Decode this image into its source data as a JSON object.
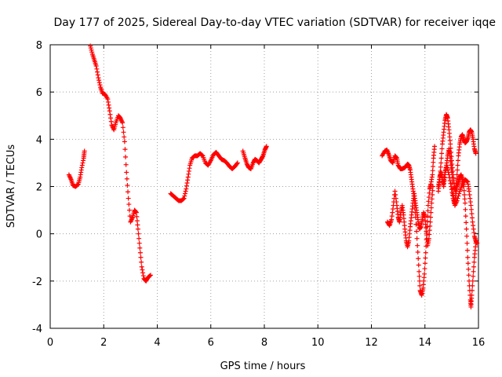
{
  "chart_data": {
    "type": "scatter",
    "title": "Day 177 of 2025, Sidereal Day-to-day VTEC variation (SDTVAR) for receiver iqqe",
    "xlabel": "GPS time / hours",
    "ylabel": "SDTVAR / TECUs",
    "xlim": [
      0,
      16
    ],
    "ylim": [
      -4,
      8
    ],
    "xticks": [
      "0",
      "2",
      "4",
      "6",
      "8",
      "10",
      "12",
      "14",
      "16"
    ],
    "yticks": [
      "-4",
      "-2",
      "0",
      "2",
      "4",
      "6",
      "8"
    ],
    "grid": true,
    "marker": "+",
    "colors": {
      "series": "#ff0000",
      "grid": "#a0a0a0",
      "axes": "#000000"
    },
    "series": [
      {
        "segments": [
          [
            [
              0.7,
              2.5
            ],
            [
              0.78,
              2.3
            ],
            [
              0.85,
              2.05
            ],
            [
              0.95,
              2.0
            ],
            [
              1.05,
              2.1
            ],
            [
              1.12,
              2.4
            ],
            [
              1.18,
              2.8
            ],
            [
              1.25,
              3.2
            ],
            [
              1.28,
              3.5
            ]
          ],
          [
            [
              1.5,
              7.95
            ],
            [
              1.58,
              7.6
            ],
            [
              1.65,
              7.35
            ],
            [
              1.72,
              7.1
            ],
            [
              1.8,
              6.6
            ],
            [
              1.88,
              6.2
            ],
            [
              1.95,
              5.95
            ],
            [
              2.05,
              5.9
            ],
            [
              2.15,
              5.7
            ],
            [
              2.22,
              5.2
            ],
            [
              2.3,
              4.6
            ],
            [
              2.38,
              4.4
            ],
            [
              2.45,
              4.7
            ],
            [
              2.55,
              5.0
            ],
            [
              2.62,
              4.9
            ],
            [
              2.7,
              4.7
            ],
            [
              2.78,
              3.9
            ],
            [
              2.85,
              2.6
            ],
            [
              2.92,
              1.5
            ],
            [
              3.0,
              0.5
            ],
            [
              3.08,
              0.7
            ],
            [
              3.15,
              1.0
            ],
            [
              3.22,
              0.9
            ],
            [
              3.28,
              0.2
            ],
            [
              3.35,
              -0.6
            ],
            [
              3.42,
              -1.4
            ],
            [
              3.5,
              -1.9
            ],
            [
              3.58,
              -2.0
            ],
            [
              3.65,
              -1.85
            ],
            [
              3.75,
              -1.75
            ]
          ],
          [
            [
              4.5,
              1.7
            ],
            [
              4.6,
              1.6
            ],
            [
              4.7,
              1.5
            ],
            [
              4.8,
              1.4
            ],
            [
              4.9,
              1.4
            ],
            [
              5.0,
              1.5
            ],
            [
              5.08,
              1.9
            ],
            [
              5.15,
              2.4
            ],
            [
              5.22,
              2.9
            ],
            [
              5.3,
              3.2
            ],
            [
              5.4,
              3.3
            ],
            [
              5.5,
              3.3
            ],
            [
              5.6,
              3.4
            ],
            [
              5.7,
              3.3
            ],
            [
              5.8,
              3.0
            ],
            [
              5.9,
              2.9
            ],
            [
              6.0,
              3.1
            ],
            [
              6.1,
              3.35
            ],
            [
              6.2,
              3.45
            ],
            [
              6.3,
              3.3
            ],
            [
              6.4,
              3.15
            ],
            [
              6.5,
              3.1
            ],
            [
              6.6,
              3.0
            ],
            [
              6.7,
              2.85
            ],
            [
              6.8,
              2.75
            ],
            [
              6.9,
              2.85
            ],
            [
              7.0,
              3.0
            ]
          ],
          [
            [
              7.2,
              3.5
            ],
            [
              7.28,
              3.2
            ],
            [
              7.35,
              2.95
            ],
            [
              7.42,
              2.8
            ],
            [
              7.5,
              2.75
            ],
            [
              7.58,
              3.0
            ],
            [
              7.65,
              3.15
            ],
            [
              7.72,
              3.1
            ],
            [
              7.8,
              3.0
            ],
            [
              7.88,
              3.15
            ],
            [
              7.95,
              3.3
            ],
            [
              8.02,
              3.55
            ],
            [
              8.08,
              3.7
            ]
          ],
          [
            [
              12.4,
              3.3
            ],
            [
              12.5,
              3.5
            ],
            [
              12.58,
              3.55
            ],
            [
              12.65,
              3.35
            ],
            [
              12.72,
              3.1
            ],
            [
              12.8,
              3.0
            ],
            [
              12.88,
              3.3
            ],
            [
              12.95,
              3.2
            ],
            [
              13.0,
              2.9
            ],
            [
              13.08,
              2.75
            ],
            [
              13.15,
              2.75
            ],
            [
              13.25,
              2.8
            ],
            [
              13.35,
              2.95
            ],
            [
              13.4,
              2.9
            ],
            [
              13.45,
              2.7
            ],
            [
              13.5,
              2.3
            ],
            [
              13.55,
              1.9
            ],
            [
              13.6,
              1.5
            ],
            [
              13.65,
              0.7
            ],
            [
              13.72,
              -0.5
            ],
            [
              13.78,
              -1.6
            ],
            [
              13.82,
              -2.4
            ],
            [
              13.88,
              -2.6
            ],
            [
              13.93,
              -2.3
            ],
            [
              13.98,
              -1.7
            ],
            [
              14.03,
              -0.8
            ],
            [
              14.08,
              0.3
            ],
            [
              14.12,
              1.2
            ],
            [
              14.18,
              1.9
            ],
            [
              14.22,
              2.1
            ],
            [
              14.28,
              2.5
            ],
            [
              14.32,
              3.2
            ],
            [
              14.36,
              3.7
            ]
          ],
          [
            [
              12.6,
              0.5
            ],
            [
              12.68,
              0.35
            ],
            [
              12.75,
              0.6
            ],
            [
              12.82,
              1.2
            ],
            [
              12.88,
              1.8
            ],
            [
              12.95,
              1.2
            ],
            [
              13.0,
              0.7
            ],
            [
              13.05,
              0.5
            ],
            [
              13.1,
              0.9
            ],
            [
              13.15,
              1.2
            ],
            [
              13.2,
              0.8
            ],
            [
              13.25,
              0.2
            ],
            [
              13.3,
              -0.3
            ],
            [
              13.35,
              -0.55
            ],
            [
              13.4,
              -0.3
            ],
            [
              13.45,
              0.3
            ],
            [
              13.5,
              0.8
            ],
            [
              13.55,
              1.3
            ],
            [
              13.6,
              1.7
            ],
            [
              13.65,
              1.3
            ],
            [
              13.7,
              0.9
            ],
            [
              13.75,
              0.5
            ],
            [
              13.8,
              0.2
            ],
            [
              13.85,
              0.3
            ],
            [
              13.9,
              0.6
            ],
            [
              13.95,
              0.9
            ],
            [
              14.0,
              0.7
            ],
            [
              14.05,
              0.1
            ],
            [
              14.1,
              -0.5
            ],
            [
              14.15,
              -0.2
            ],
            [
              14.2,
              0.5
            ],
            [
              14.25,
              1.3
            ],
            [
              14.3,
              2.0
            ]
          ],
          [
            [
              14.5,
              1.8
            ],
            [
              14.55,
              2.3
            ],
            [
              14.6,
              3.0
            ],
            [
              14.65,
              3.8
            ],
            [
              14.7,
              4.3
            ],
            [
              14.75,
              4.8
            ],
            [
              14.8,
              5.05
            ],
            [
              14.85,
              4.9
            ],
            [
              14.9,
              4.4
            ],
            [
              14.95,
              3.8
            ],
            [
              15.0,
              3.1
            ],
            [
              15.05,
              2.5
            ],
            [
              15.1,
              2.0
            ],
            [
              15.15,
              1.8
            ],
            [
              15.2,
              2.5
            ],
            [
              15.25,
              3.3
            ],
            [
              15.3,
              3.8
            ],
            [
              15.35,
              4.1
            ],
            [
              15.4,
              4.2
            ],
            [
              15.45,
              4.0
            ],
            [
              15.5,
              3.85
            ],
            [
              15.55,
              3.9
            ],
            [
              15.6,
              4.05
            ],
            [
              15.65,
              4.3
            ],
            [
              15.7,
              4.4
            ],
            [
              15.75,
              4.3
            ],
            [
              15.8,
              4.0
            ],
            [
              15.85,
              3.6
            ],
            [
              15.9,
              3.4
            ]
          ],
          [
            [
              14.5,
              2.0
            ],
            [
              14.55,
              2.4
            ],
            [
              14.6,
              2.6
            ],
            [
              14.65,
              2.3
            ],
            [
              14.7,
              2.0
            ],
            [
              14.75,
              2.5
            ],
            [
              14.8,
              2.9
            ],
            [
              14.85,
              3.3
            ],
            [
              14.9,
              3.6
            ],
            [
              14.95,
              3.2
            ],
            [
              15.0,
              2.6
            ],
            [
              15.05,
              1.7
            ],
            [
              15.1,
              1.3
            ],
            [
              15.15,
              1.6
            ],
            [
              15.2,
              2.0
            ],
            [
              15.25,
              2.2
            ],
            [
              15.3,
              2.4
            ],
            [
              15.35,
              2.5
            ],
            [
              15.4,
              2.3
            ],
            [
              15.45,
              2.0
            ],
            [
              15.5,
              1.3
            ],
            [
              15.55,
              0.2
            ],
            [
              15.6,
              -1.0
            ],
            [
              15.65,
              -2.0
            ],
            [
              15.7,
              -2.8
            ],
            [
              15.72,
              -3.1
            ],
            [
              15.75,
              -2.6
            ],
            [
              15.8,
              -1.8
            ],
            [
              15.85,
              -1.0
            ],
            [
              15.9,
              -0.4
            ]
          ],
          [
            [
              14.7,
              2.2
            ],
            [
              14.75,
              2.6
            ],
            [
              14.82,
              2.9
            ],
            [
              14.9,
              2.5
            ],
            [
              14.98,
              2.0
            ],
            [
              15.05,
              1.5
            ],
            [
              15.12,
              1.2
            ],
            [
              15.2,
              1.4
            ],
            [
              15.3,
              1.8
            ],
            [
              15.4,
              2.1
            ],
            [
              15.5,
              2.3
            ],
            [
              15.6,
              2.2
            ],
            [
              15.65,
              1.8
            ],
            [
              15.72,
              1.2
            ],
            [
              15.78,
              0.5
            ],
            [
              15.85,
              -0.1
            ],
            [
              15.9,
              -0.3
            ],
            [
              15.95,
              -0.4
            ]
          ]
        ]
      }
    ]
  }
}
